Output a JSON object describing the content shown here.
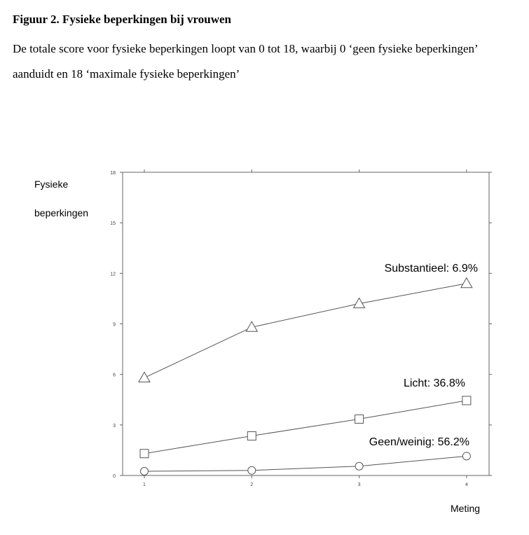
{
  "figure": {
    "title": "Figuur 2. Fysieke beperkingen bij vrouwen",
    "caption": "De totale score voor fysieke beperkingen loopt van 0 tot 18, waarbij 0 ‘geen fysieke beperkingen’ aanduidt en 18 ‘maximale fysieke beperkingen’"
  },
  "chart_data": {
    "type": "line",
    "title": "",
    "ylabel_line1": "Fysieke",
    "ylabel_line2": "beperkingen",
    "xlabel": "Meting",
    "x": [
      1,
      2,
      3,
      4
    ],
    "xlim": [
      0.8,
      4.2
    ],
    "ylim": [
      0,
      18
    ],
    "yticks": [
      0,
      3,
      6,
      9,
      12,
      15,
      18
    ],
    "grid": false,
    "series": [
      {
        "name": "Substantieel: 6.9%",
        "marker": "triangle",
        "values": [
          5.8,
          8.8,
          10.2,
          11.4
        ]
      },
      {
        "name": "Licht: 36.8%",
        "marker": "square",
        "values": [
          1.3,
          2.35,
          3.35,
          4.45
        ]
      },
      {
        "name": "Geen/weinig: 56.2%",
        "marker": "circle",
        "values": [
          0.25,
          0.3,
          0.55,
          1.15
        ]
      }
    ],
    "line_color": "#555555"
  }
}
